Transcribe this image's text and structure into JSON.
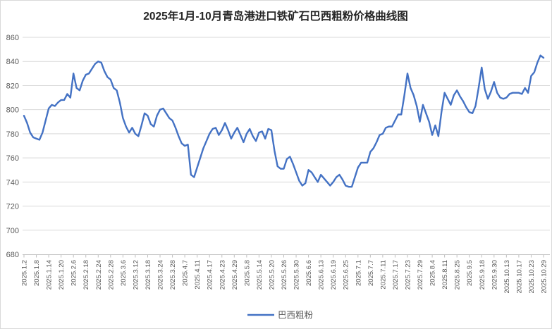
{
  "chart": {
    "title": "2025年1月-10月青岛港进口铁矿石巴西粗粉价格曲线图",
    "legend_label": "巴西粗粉"
  },
  "colors": {
    "series_line": "#4472C4",
    "gridline": "#D9D9D9",
    "axis_line": "#BFBFBF",
    "tick_label": "#595959",
    "title_text": "#262626"
  },
  "chart_data": {
    "type": "line",
    "title": "2025年1月-10月青岛港进口铁矿石巴西粗粉价格曲线图",
    "xlabel": "",
    "ylabel": "",
    "ylim": [
      680,
      860
    ],
    "y_ticks": [
      680,
      700,
      720,
      740,
      760,
      780,
      800,
      820,
      840,
      860
    ],
    "grid": true,
    "legend_position": "bottom",
    "x_tick_labels": [
      "2025.1.2",
      "2025.1.8",
      "2025.1.14",
      "2025.1.20",
      "2025.2.6",
      "2025.2.18",
      "2025.2.24",
      "2025.2.28",
      "2025.3.6",
      "2025.3.12",
      "2025.3.18",
      "2025.3.24",
      "2025.3.28",
      "2025.4.7",
      "2025.4.11",
      "2025.4.17",
      "2025.4.23",
      "2025.4.29",
      "2025.5.8",
      "2025.5.14",
      "2025.5.20",
      "2025.5.26",
      "2025.5.30",
      "2025.6.6",
      "2025.6.13",
      "2025.6.19",
      "2025.6.25",
      "2025.7.1",
      "2025.7.7",
      "2025.7.11",
      "2025.7.17",
      "2025.7.23",
      "2025.7.29",
      "2025.8.4",
      "2025.8.11",
      "2025.8.25",
      "2025.9.5",
      "2025.9.18",
      "2025.9.30",
      "2025.10.13",
      "2025.10.17",
      "2025.10.23",
      "2025.10.29"
    ],
    "label_every": 4,
    "series": [
      {
        "name": "巴西粗粉",
        "color": "#4472C4",
        "values": [
          795,
          789,
          781,
          777,
          776,
          775,
          781,
          791,
          801,
          804,
          803,
          806,
          808,
          808,
          813,
          810,
          830,
          818,
          816,
          824,
          829,
          830,
          834,
          838,
          840,
          839,
          832,
          827,
          825,
          818,
          816,
          806,
          793,
          786,
          781,
          785,
          780,
          778,
          787,
          797,
          795,
          788,
          786,
          795,
          800,
          801,
          797,
          793,
          791,
          785,
          778,
          772,
          770,
          771,
          746,
          744,
          752,
          760,
          768,
          774,
          780,
          784,
          785,
          779,
          783,
          789,
          783,
          776,
          781,
          785,
          779,
          773,
          780,
          784,
          778,
          774,
          781,
          782,
          776,
          784,
          783,
          766,
          753,
          751,
          751,
          759,
          761,
          755,
          748,
          741,
          737,
          739,
          750,
          748,
          744,
          740,
          746,
          743,
          740,
          737,
          740,
          744,
          746,
          742,
          737,
          736,
          736,
          744,
          752,
          756,
          756,
          756,
          765,
          768,
          773,
          779,
          780,
          785,
          786,
          786,
          791,
          796,
          796,
          812,
          830,
          818,
          812,
          803,
          790,
          804,
          797,
          790,
          779,
          787,
          778,
          798,
          814,
          809,
          804,
          812,
          816,
          811,
          807,
          802,
          798,
          797,
          803,
          818,
          835,
          817,
          809,
          815,
          823,
          814,
          810,
          809,
          810,
          813,
          814,
          814,
          814,
          813,
          818,
          814,
          828,
          831,
          839,
          845,
          843
        ]
      }
    ]
  }
}
